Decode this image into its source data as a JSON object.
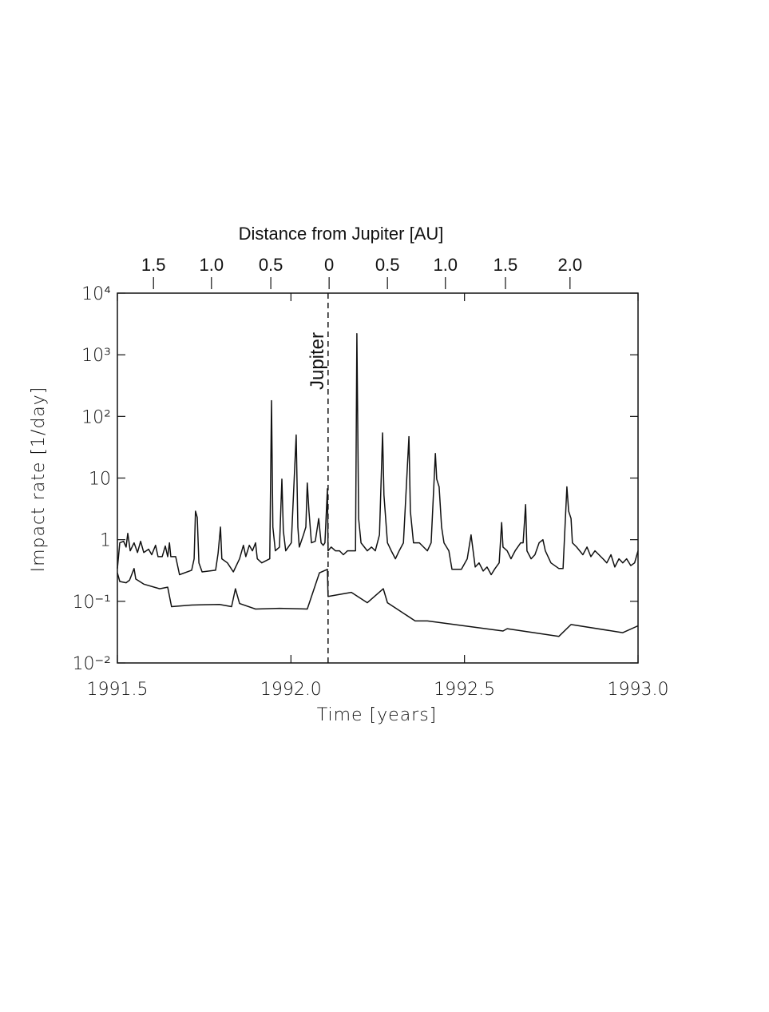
{
  "chart_data": {
    "type": "line",
    "xlabel": "Time [years]",
    "ylabel": "Impact rate [1/day]",
    "xlim": [
      1991.5,
      1993.0
    ],
    "xticks": [
      1991.5,
      {
        "value": 1992.0,
        "label": "1992.0"
      },
      1992.5,
      {
        "value": 1993.0,
        "label": "1993.0"
      }
    ],
    "ylim": [
      0.01,
      10000
    ],
    "yticks": [
      {
        "value": 0.01,
        "label": "10⁻²"
      },
      {
        "value": 0.1,
        "label": "10⁻¹"
      },
      1,
      10,
      {
        "value": 100,
        "label": "10²"
      },
      {
        "value": 1000,
        "label": "10³"
      },
      {
        "value": 10000,
        "label": "10⁴"
      }
    ],
    "log_y": true,
    "top_axis": {
      "label": "Distance from Jupiter [AU]",
      "ticks": [
        1.5,
        {
          "value": 1.0,
          "label": "1.0"
        },
        0.5,
        0,
        0.5,
        {
          "value": 1.0,
          "label": "1.0"
        },
        1.5,
        {
          "value": 2.0,
          "label": "2.0"
        }
      ],
      "at": [
        1991.604,
        1991.771,
        1991.942,
        1992.11,
        1992.278,
        1992.445,
        1992.618,
        1992.804
      ]
    },
    "annotations": [
      {
        "text": "Jupiter",
        "x": 1992.107
      }
    ],
    "series": [
      {
        "color": "#111111",
        "x": [
          1991.5,
          1991.507,
          1991.518,
          1991.525,
          1991.53,
          1991.537,
          1991.548,
          1991.558,
          1991.567,
          1991.576,
          1991.59,
          1991.599,
          1991.61,
          1991.617,
          1991.629,
          1991.638,
          1991.645,
          1991.65,
          1991.654,
          1991.668,
          1991.679,
          1991.714,
          1991.721,
          1991.725,
          1991.73,
          1991.735,
          1991.744,
          1991.783,
          1991.79,
          1991.797,
          1991.801,
          1991.817,
          1991.834,
          1991.852,
          1991.863,
          1991.87,
          1991.88,
          1991.889,
          1991.898,
          1991.903,
          1991.916,
          1991.939,
          1991.944,
          1991.948,
          1991.955,
          1991.967,
          1991.974,
          1991.978,
          1991.985,
          1992.001,
          1992.015,
          1992.02,
          1992.024,
          1992.036,
          1992.043,
          1992.047,
          1992.052,
          1992.059,
          1992.07,
          1992.08,
          1992.087,
          1992.093,
          1992.098,
          1992.105,
          1992.107,
          1992.116,
          1992.128,
          1992.14,
          1992.151,
          1992.163,
          1992.174,
          1992.186,
          1992.19,
          1992.195,
          1992.202,
          1992.22,
          1992.232,
          1992.243,
          1992.255,
          1992.264,
          1992.268,
          1992.278,
          1992.289,
          1992.301,
          1992.312,
          1992.324,
          1992.34,
          1992.344,
          1992.353,
          1992.37,
          1992.393,
          1992.404,
          1992.416,
          1992.42,
          1992.427,
          1992.434,
          1992.441,
          1992.455,
          1992.464,
          1992.491,
          1992.508,
          1992.519,
          1992.531,
          1992.542,
          1992.554,
          1992.565,
          1992.577,
          1992.588,
          1992.6,
          1992.607,
          1992.611,
          1992.623,
          1992.634,
          1992.646,
          1992.662,
          1992.669,
          1992.676,
          1992.68,
          1992.692,
          1992.703,
          1992.715,
          1992.726,
          1992.733,
          1992.749,
          1992.772,
          1992.784,
          1992.795,
          1992.8,
          1992.807,
          1992.811,
          1992.823,
          1992.841,
          1992.853,
          1992.864,
          1992.876,
          1992.899,
          1992.91,
          1992.922,
          1992.933,
          1992.945,
          1992.956,
          1992.967,
          1992.979,
          1992.99,
          1993.0
        ],
        "values": [
          0.34,
          0.89,
          0.94,
          0.76,
          1.27,
          0.66,
          0.89,
          0.62,
          0.94,
          0.62,
          0.7,
          0.57,
          0.81,
          0.53,
          0.53,
          0.79,
          0.53,
          0.89,
          0.53,
          0.53,
          0.27,
          0.32,
          0.49,
          2.9,
          2.3,
          0.42,
          0.3,
          0.32,
          0.6,
          1.6,
          0.49,
          0.42,
          0.3,
          0.49,
          0.81,
          0.53,
          0.81,
          0.66,
          0.89,
          0.49,
          0.42,
          0.49,
          180,
          1.6,
          0.66,
          0.76,
          9.6,
          1.4,
          0.66,
          0.89,
          50,
          1.6,
          0.76,
          1.2,
          1.6,
          8.3,
          2.9,
          0.89,
          0.94,
          2.2,
          0.89,
          0.81,
          0.89,
          6.7,
          0.66,
          0.76,
          0.66,
          0.66,
          0.57,
          0.66,
          0.66,
          0.66,
          2200,
          2.2,
          0.89,
          0.66,
          0.76,
          0.66,
          1.2,
          54,
          5.3,
          0.89,
          0.66,
          0.49,
          0.66,
          0.89,
          47,
          2.9,
          0.89,
          0.89,
          0.66,
          0.89,
          25,
          9.6,
          7.2,
          1.6,
          0.89,
          0.66,
          0.33,
          0.33,
          0.49,
          1.2,
          0.36,
          0.42,
          0.31,
          0.36,
          0.27,
          0.34,
          0.42,
          1.9,
          0.76,
          0.66,
          0.49,
          0.66,
          0.89,
          0.89,
          3.7,
          0.66,
          0.49,
          0.57,
          0.89,
          1.0,
          0.66,
          0.42,
          0.34,
          0.34,
          7.2,
          2.9,
          2.2,
          0.89,
          0.76,
          0.57,
          0.76,
          0.53,
          0.66,
          0.49,
          0.42,
          0.57,
          0.36,
          0.49,
          0.42,
          0.49,
          0.38,
          0.42,
          0.66
        ]
      },
      {
        "color": "#111111",
        "x": [
          1991.5,
          1991.507,
          1991.525,
          1991.535,
          1991.548,
          1991.553,
          1991.576,
          1991.622,
          1991.645,
          1991.656,
          1991.714,
          1991.794,
          1991.829,
          1991.84,
          1991.852,
          1991.898,
          1991.967,
          1992.047,
          1992.082,
          1992.105,
          1992.107,
          1992.174,
          1992.22,
          1992.266,
          1992.278,
          1992.358,
          1992.393,
          1992.611,
          1992.623,
          1992.772,
          1992.807,
          1992.956,
          1993.0
        ],
        "values": [
          0.29,
          0.21,
          0.2,
          0.22,
          0.34,
          0.23,
          0.19,
          0.16,
          0.17,
          0.082,
          0.087,
          0.089,
          0.082,
          0.16,
          0.092,
          0.075,
          0.077,
          0.075,
          0.29,
          0.33,
          0.12,
          0.14,
          0.095,
          0.16,
          0.095,
          0.048,
          0.048,
          0.033,
          0.036,
          0.027,
          0.042,
          0.031,
          0.04
        ]
      }
    ]
  }
}
